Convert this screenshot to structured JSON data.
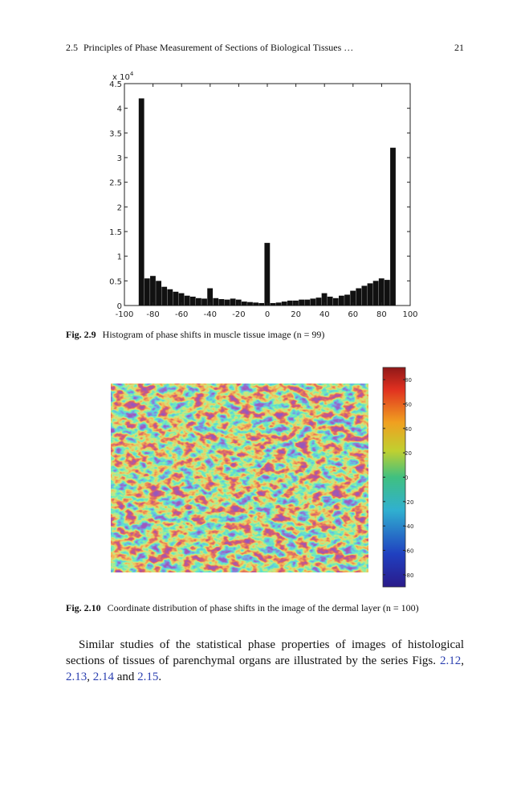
{
  "header": {
    "section": "2.5",
    "title": "Principles of Phase Measurement of Sections of Biological Tissues …",
    "page": "21"
  },
  "chart_data": {
    "type": "histogram",
    "bins": [
      -90,
      -86,
      -82,
      -78,
      -74,
      -70,
      -66,
      -62,
      -58,
      -54,
      -50,
      -46,
      -42,
      -38,
      -34,
      -30,
      -26,
      -22,
      -18,
      -14,
      -10,
      -6,
      -2,
      2,
      6,
      10,
      14,
      18,
      22,
      26,
      30,
      34,
      38,
      42,
      46,
      50,
      54,
      58,
      62,
      66,
      70,
      74,
      78,
      82,
      86,
      90
    ],
    "counts": [
      4.2,
      0.55,
      0.6,
      0.5,
      0.38,
      0.33,
      0.28,
      0.25,
      0.2,
      0.18,
      0.15,
      0.14,
      0.35,
      0.15,
      0.13,
      0.12,
      0.14,
      0.12,
      0.08,
      0.07,
      0.06,
      0.05,
      1.27,
      0.05,
      0.06,
      0.08,
      0.1,
      0.1,
      0.12,
      0.12,
      0.14,
      0.16,
      0.25,
      0.18,
      0.15,
      0.2,
      0.22,
      0.3,
      0.35,
      0.4,
      0.45,
      0.5,
      0.55,
      0.52,
      3.2
    ],
    "color": "#111111",
    "xlim": [
      -100,
      100
    ],
    "xticks": [
      -100,
      -80,
      -60,
      -40,
      -20,
      0,
      20,
      40,
      60,
      80,
      100
    ],
    "ylim": [
      0,
      4.5
    ],
    "yticks": [
      0,
      0.5,
      1,
      1.5,
      2,
      2.5,
      3,
      3.5,
      4,
      4.5
    ],
    "axis_multiplier": {
      "base": "x 10",
      "exponent": "4"
    },
    "caption_label": "Fig. 2.9",
    "caption": "Histogram of phase shifts in muscle tissue image (n = 99)"
  },
  "colormap_figure": {
    "clim": [
      -90,
      90
    ],
    "ticks": [
      80,
      60,
      40,
      20,
      0,
      -20,
      -40,
      -60,
      -80
    ],
    "caption_label": "Fig. 2.10",
    "caption": "Coordinate distribution of phase shifts in the image of the dermal layer (n = 100)"
  },
  "paragraph": {
    "segments": [
      {
        "text": "Similar studies of the statistical phase properties of images of histological sections of tissues of parenchymal organs are illustrated by the series Figs. "
      },
      {
        "text": "2.12",
        "link": true
      },
      {
        "text": ", "
      },
      {
        "text": "2.13",
        "link": true
      },
      {
        "text": ", "
      },
      {
        "text": "2.14",
        "link": true
      },
      {
        "text": " and "
      },
      {
        "text": "2.15",
        "link": true
      },
      {
        "text": "."
      }
    ]
  }
}
